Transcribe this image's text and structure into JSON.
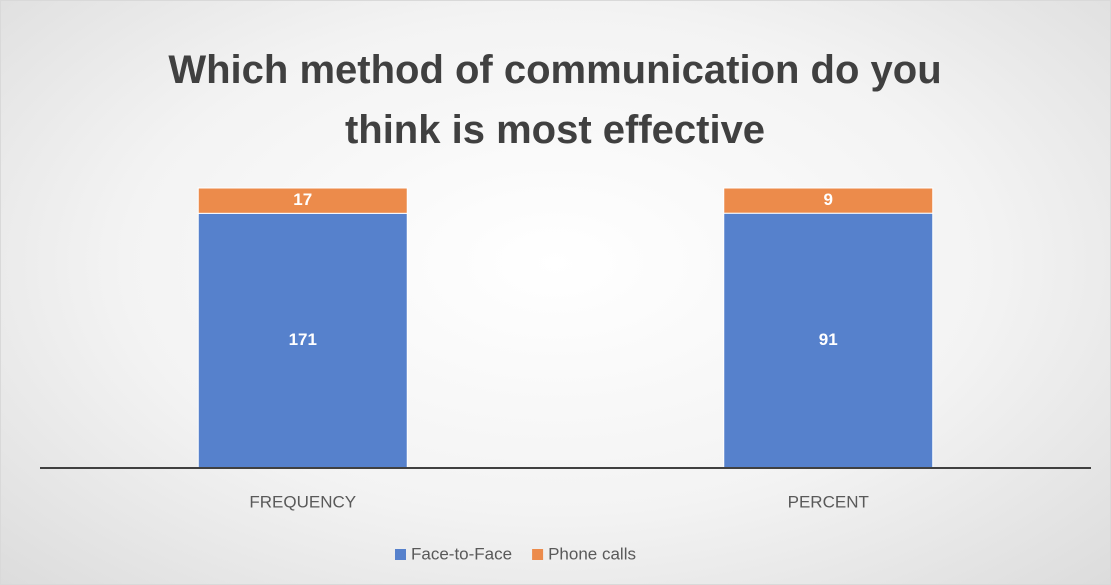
{
  "chart_data": {
    "type": "stacked_percent",
    "title": "Which method of communication do you think is most effective",
    "categories": [
      "FREQUENCY",
      "PERCENT"
    ],
    "series": [
      {
        "name": "Face-to-Face",
        "color": "#5681cc",
        "values": [
          171,
          91
        ]
      },
      {
        "name": "Phone calls",
        "color": "#ec8b4b",
        "values": [
          17,
          9
        ]
      }
    ],
    "legend": "bottom"
  }
}
